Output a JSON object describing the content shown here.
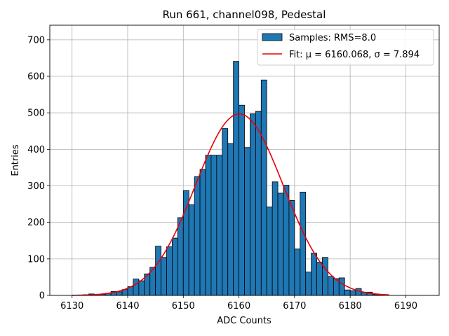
{
  "chart_data": {
    "type": "bar",
    "title": "Run 661, channel098, Pedestal",
    "xlabel": "ADC Counts",
    "ylabel": "Entries",
    "xlim": [
      6126,
      6196
    ],
    "ylim": [
      0,
      740
    ],
    "x_ticks": [
      6130,
      6140,
      6150,
      6160,
      6170,
      6180,
      6190
    ],
    "y_ticks": [
      0,
      100,
      200,
      300,
      400,
      500,
      600,
      700
    ],
    "grid": true,
    "legend_position": "top-right",
    "bin_width": 1,
    "series": [
      {
        "name": "Samples: RMS=8.0",
        "kind": "histogram",
        "color": "#1f77b4",
        "edgecolor": "#000000",
        "bins": [
          6130,
          6131,
          6132,
          6133,
          6134,
          6135,
          6136,
          6137,
          6138,
          6139,
          6140,
          6141,
          6142,
          6143,
          6144,
          6145,
          6146,
          6147,
          6148,
          6149,
          6150,
          6151,
          6152,
          6153,
          6154,
          6155,
          6156,
          6157,
          6158,
          6159,
          6160,
          6161,
          6162,
          6163,
          6164,
          6165,
          6166,
          6167,
          6168,
          6169,
          6170,
          6171,
          6172,
          6173,
          6174,
          6175,
          6176,
          6177,
          6178,
          6179,
          6180,
          6181,
          6182,
          6183,
          6184,
          6185,
          6186
        ],
        "values": [
          0,
          1,
          2,
          4,
          3,
          3,
          6,
          11,
          10,
          16,
          24,
          45,
          40,
          59,
          77,
          135,
          104,
          133,
          157,
          213,
          287,
          248,
          325,
          345,
          384,
          384,
          384,
          457,
          416,
          641,
          521,
          405,
          497,
          504,
          590,
          242,
          311,
          280,
          302,
          260,
          127,
          283,
          64,
          116,
          91,
          104,
          52,
          46,
          48,
          15,
          13,
          19,
          9,
          9,
          2,
          1,
          0
        ]
      },
      {
        "name": "Fit: μ = 6160.068, σ = 7.894",
        "kind": "line",
        "color": "#e8000b",
        "mu": 6160.068,
        "sigma": 7.894,
        "amplitude": 497,
        "x_range": [
          6130,
          6187
        ]
      }
    ]
  }
}
